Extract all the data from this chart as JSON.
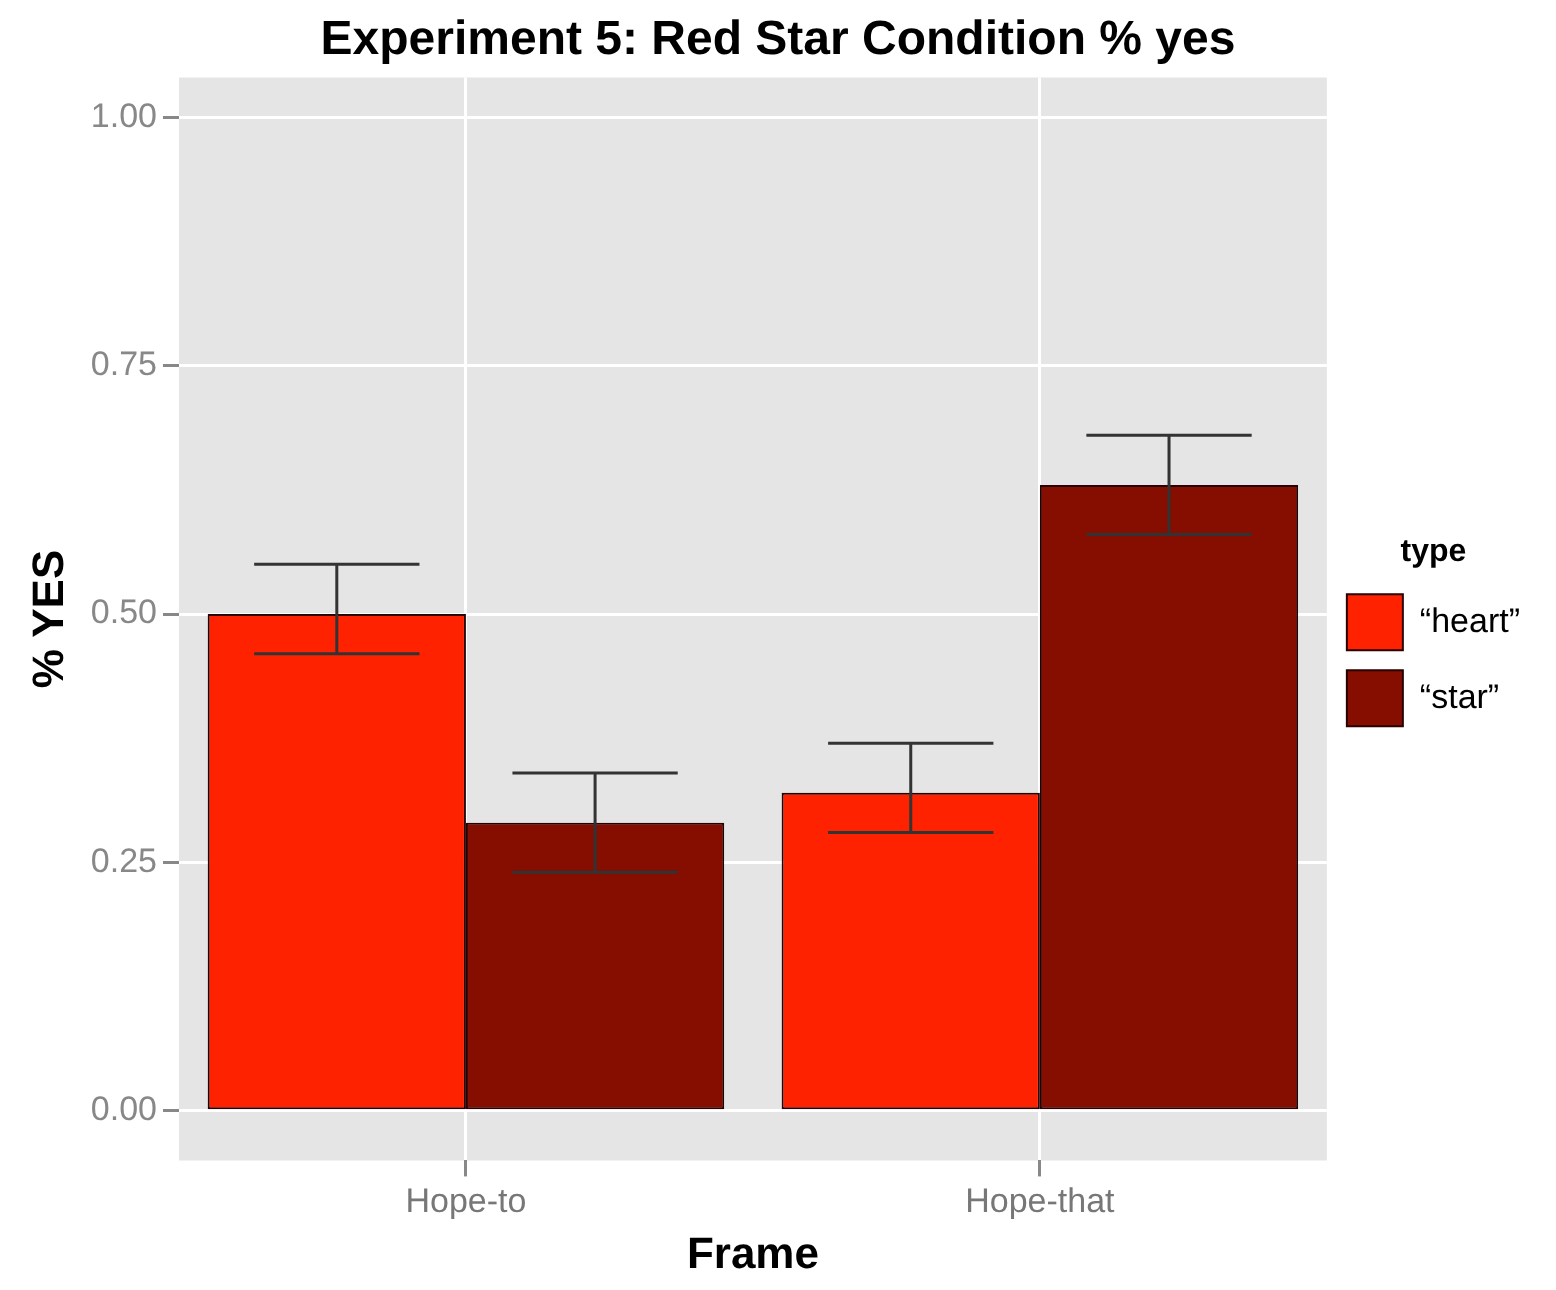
{
  "chart_data": {
    "type": "bar",
    "title": "Experiment 5: Red Star Condition % yes",
    "xlabel": "Frame",
    "ylabel": "% YES",
    "legend_title": "type",
    "categories": [
      "Hope-to",
      "Hope-that"
    ],
    "series": [
      {
        "name": "“heart”",
        "color": "#ff2200",
        "values": [
          0.5,
          0.32
        ],
        "errors": [
          [
            0.46,
            0.55
          ],
          [
            0.28,
            0.37
          ]
        ]
      },
      {
        "name": "“star”",
        "color": "#850e00",
        "values": [
          0.29,
          0.63
        ],
        "errors": [
          [
            0.24,
            0.34
          ],
          [
            0.58,
            0.68
          ]
        ]
      }
    ],
    "ylim": [
      -0.05,
      1.04
    ],
    "yticks": [
      {
        "value": 0,
        "label": "0.00"
      },
      {
        "value": 0.25,
        "label": "0.25"
      },
      {
        "value": 0.5,
        "label": "0.50"
      },
      {
        "value": 0.75,
        "label": "0.75"
      },
      {
        "value": 1,
        "label": "1.00"
      }
    ],
    "grid": true,
    "legend": "right"
  }
}
